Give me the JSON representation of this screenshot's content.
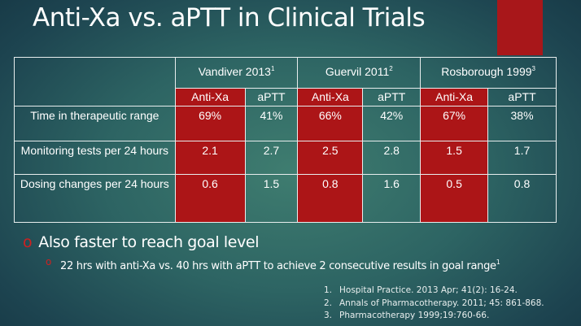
{
  "title": "Anti-Xa vs. aPTT in Clinical Trials",
  "table": {
    "studies": [
      {
        "name": "Vandiver 2013",
        "ref": "1"
      },
      {
        "name": "Guervil 2011",
        "ref": "2"
      },
      {
        "name": "Rosborough 1999",
        "ref": "3"
      }
    ],
    "subheaders": [
      "Anti-Xa",
      "aPTT",
      "Anti-Xa",
      "aPTT",
      "Anti-Xa",
      "aPTT"
    ],
    "rows": [
      {
        "label": "Time in therapeutic range",
        "values": [
          "69%",
          "41%",
          "66%",
          "42%",
          "67%",
          "38%"
        ]
      },
      {
        "label": "Monitoring tests per 24 hours",
        "values": [
          "2.1",
          "2.7",
          "2.5",
          "2.8",
          "1.5",
          "1.7"
        ]
      },
      {
        "label": "Dosing changes per 24 hours",
        "values": [
          "0.6",
          "1.5",
          "0.8",
          "1.6",
          "0.5",
          "0.8"
        ]
      }
    ]
  },
  "bullets": {
    "main": "Also faster to reach goal level",
    "sub": "22 hrs with anti-Xa vs. 40 hrs with aPTT to achieve 2 consecutive results in goal range",
    "sub_ref": "1",
    "marker": "o"
  },
  "references": [
    {
      "n": "1.",
      "text": "Hospital Practice.  2013 Apr; 41(2):  16-24."
    },
    {
      "n": "2.",
      "text": "Annals of Pharmacotherapy.  2011; 45:  861-868."
    },
    {
      "n": "3.",
      "text": "Pharmacotherapy 1999;19:760-66."
    }
  ],
  "colors": {
    "accent": "#ac1517",
    "background": "#2d6463"
  }
}
